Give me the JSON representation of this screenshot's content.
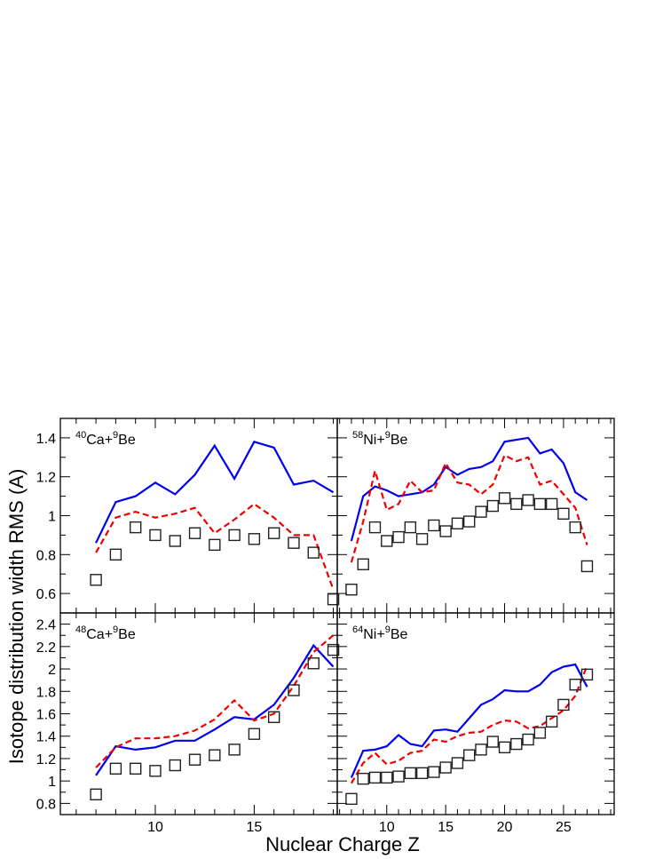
{
  "figure": {
    "ylabel": "Isotope distribution width RMS (A)",
    "xlabel": "Nuclear Charge Z"
  },
  "colors": {
    "solid": "#0000ee",
    "dashed": "#ee0000",
    "markers": "#222222"
  },
  "chart_data": [
    {
      "type": "line",
      "label_parts": {
        "m1": "40",
        "e1": "Ca+",
        "m2": "9",
        "e2": "Be"
      },
      "xlim": [
        5.2,
        19.2
      ],
      "ylim": [
        0.5,
        1.5
      ],
      "xticks": [
        10,
        15
      ],
      "yticks": [
        0.6,
        0.8,
        1,
        1.2,
        1.4
      ],
      "xtick_labels": [
        "10",
        "15"
      ],
      "ytick_labels": [
        "0.6",
        "0.8",
        "1",
        "1.2",
        "1.4"
      ],
      "solid": {
        "x": [
          7,
          8,
          9,
          10,
          11,
          12,
          13,
          14,
          15,
          16,
          17,
          18,
          19
        ],
        "y": [
          0.86,
          1.07,
          1.1,
          1.17,
          1.11,
          1.21,
          1.36,
          1.19,
          1.38,
          1.35,
          1.16,
          1.18,
          1.12
        ]
      },
      "dashed": {
        "x": [
          7,
          8,
          9,
          10,
          11,
          12,
          13,
          14,
          15,
          16,
          17,
          18,
          19
        ],
        "y": [
          0.81,
          0.99,
          1.02,
          0.99,
          1.01,
          1.04,
          0.91,
          0.98,
          1.06,
          0.99,
          0.9,
          0.9,
          0.62
        ]
      },
      "markers": {
        "x": [
          7,
          8,
          9,
          10,
          11,
          12,
          13,
          14,
          15,
          16,
          17,
          18,
          19
        ],
        "y": [
          0.67,
          0.8,
          0.94,
          0.9,
          0.87,
          0.91,
          0.85,
          0.9,
          0.88,
          0.91,
          0.86,
          0.81,
          0.57
        ]
      }
    },
    {
      "type": "line",
      "label_parts": {
        "m1": "58",
        "e1": "Ni+",
        "m2": "9",
        "e2": "Be"
      },
      "xlim": [
        5.8,
        29.3
      ],
      "ylim": [
        0.5,
        1.5
      ],
      "xticks": [
        10,
        15,
        20,
        25
      ],
      "yticks": [
        0.6,
        0.8,
        1,
        1.2,
        1.4
      ],
      "xtick_labels": [
        "10",
        "15",
        "20",
        "25"
      ],
      "ytick_labels": [],
      "solid": {
        "x": [
          7,
          8,
          9,
          10,
          11,
          12,
          13,
          14,
          15,
          16,
          17,
          18,
          19,
          20,
          21,
          22,
          23,
          24,
          25,
          26,
          27
        ],
        "y": [
          0.87,
          1.1,
          1.15,
          1.13,
          1.1,
          1.11,
          1.12,
          1.16,
          1.25,
          1.21,
          1.24,
          1.25,
          1.28,
          1.38,
          1.39,
          1.4,
          1.32,
          1.34,
          1.27,
          1.12,
          1.08
        ]
      },
      "dashed": {
        "x": [
          7,
          8,
          9,
          10,
          11,
          12,
          13,
          14,
          15,
          16,
          17,
          18,
          19,
          20,
          21,
          22,
          23,
          24,
          25,
          26,
          27
        ],
        "y": [
          0.76,
          0.97,
          1.23,
          1.03,
          1.06,
          1.18,
          1.12,
          1.13,
          1.27,
          1.17,
          1.16,
          1.11,
          1.16,
          1.31,
          1.28,
          1.3,
          1.16,
          1.18,
          1.11,
          1.04,
          0.85
        ]
      },
      "markers": {
        "x": [
          7,
          8,
          9,
          10,
          11,
          12,
          13,
          14,
          15,
          16,
          17,
          18,
          19,
          20,
          21,
          22,
          23,
          24,
          25,
          26,
          27
        ],
        "y": [
          0.62,
          0.75,
          0.94,
          0.87,
          0.89,
          0.94,
          0.88,
          0.95,
          0.92,
          0.96,
          0.97,
          1.02,
          1.05,
          1.09,
          1.06,
          1.08,
          1.06,
          1.06,
          1.01,
          0.94,
          0.74
        ]
      }
    },
    {
      "type": "line",
      "label_parts": {
        "m1": "48",
        "e1": "Ca+",
        "m2": "9",
        "e2": "Be"
      },
      "xlim": [
        5.2,
        19.2
      ],
      "ylim": [
        0.7,
        2.5
      ],
      "xticks": [
        10,
        15
      ],
      "yticks": [
        0.8,
        1,
        1.2,
        1.4,
        1.6,
        1.8,
        2,
        2.2,
        2.4
      ],
      "xtick_labels": [
        "10",
        "15"
      ],
      "ytick_labels": [
        "0.8",
        "1",
        "1.2",
        "1.4",
        "1.6",
        "1.8",
        "2",
        "2.2",
        "2.4"
      ],
      "solid": {
        "x": [
          7,
          8,
          9,
          10,
          11,
          12,
          13,
          14,
          15,
          16,
          17,
          18,
          19
        ],
        "y": [
          1.05,
          1.31,
          1.28,
          1.3,
          1.36,
          1.36,
          1.46,
          1.57,
          1.55,
          1.68,
          1.92,
          2.21,
          2.02
        ]
      },
      "dashed": {
        "x": [
          7,
          8,
          9,
          10,
          11,
          12,
          13,
          14,
          15,
          16,
          17,
          18,
          19
        ],
        "y": [
          1.12,
          1.3,
          1.38,
          1.38,
          1.4,
          1.45,
          1.55,
          1.72,
          1.54,
          1.6,
          1.85,
          2.15,
          2.3
        ]
      },
      "markers": {
        "x": [
          7,
          8,
          9,
          10,
          11,
          12,
          13,
          14,
          15,
          16,
          17,
          18,
          19
        ],
        "y": [
          0.88,
          1.11,
          1.11,
          1.09,
          1.14,
          1.19,
          1.23,
          1.28,
          1.42,
          1.57,
          1.81,
          2.05,
          2.17
        ]
      }
    },
    {
      "type": "line",
      "label_parts": {
        "m1": "64",
        "e1": "Ni+",
        "m2": "9",
        "e2": "Be"
      },
      "xlim": [
        5.8,
        29.3
      ],
      "ylim": [
        0.7,
        2.5
      ],
      "xticks": [
        10,
        15,
        20,
        25
      ],
      "yticks": [
        0.8,
        1,
        1.2,
        1.4,
        1.6,
        1.8,
        2,
        2.2,
        2.4
      ],
      "xtick_labels": [
        "10",
        "15",
        "20",
        "25"
      ],
      "ytick_labels": [],
      "solid": {
        "x": [
          7,
          8,
          9,
          10,
          11,
          12,
          13,
          14,
          15,
          16,
          17,
          18,
          19,
          20,
          21,
          22,
          23,
          24,
          25,
          26,
          27
        ],
        "y": [
          1.03,
          1.27,
          1.28,
          1.31,
          1.41,
          1.33,
          1.31,
          1.45,
          1.46,
          1.44,
          1.56,
          1.68,
          1.73,
          1.81,
          1.8,
          1.8,
          1.86,
          1.97,
          2.02,
          2.04,
          1.84
        ]
      },
      "dashed": {
        "x": [
          7,
          8,
          9,
          10,
          11,
          12,
          13,
          14,
          15,
          16,
          17,
          18,
          19,
          20,
          21,
          22,
          23,
          24,
          25,
          26,
          27
        ],
        "y": [
          0.98,
          1.16,
          1.25,
          1.15,
          1.18,
          1.25,
          1.27,
          1.37,
          1.35,
          1.4,
          1.43,
          1.44,
          1.5,
          1.54,
          1.53,
          1.47,
          1.49,
          1.56,
          1.63,
          1.76,
          2.03
        ]
      },
      "markers": {
        "x": [
          7,
          8,
          9,
          10,
          11,
          12,
          13,
          14,
          15,
          16,
          17,
          18,
          19,
          20,
          21,
          22,
          23,
          24,
          25,
          26,
          27
        ],
        "y": [
          0.84,
          1.02,
          1.03,
          1.03,
          1.04,
          1.07,
          1.07,
          1.08,
          1.12,
          1.16,
          1.23,
          1.28,
          1.35,
          1.3,
          1.33,
          1.37,
          1.43,
          1.53,
          1.68,
          1.86,
          1.95
        ]
      }
    }
  ]
}
